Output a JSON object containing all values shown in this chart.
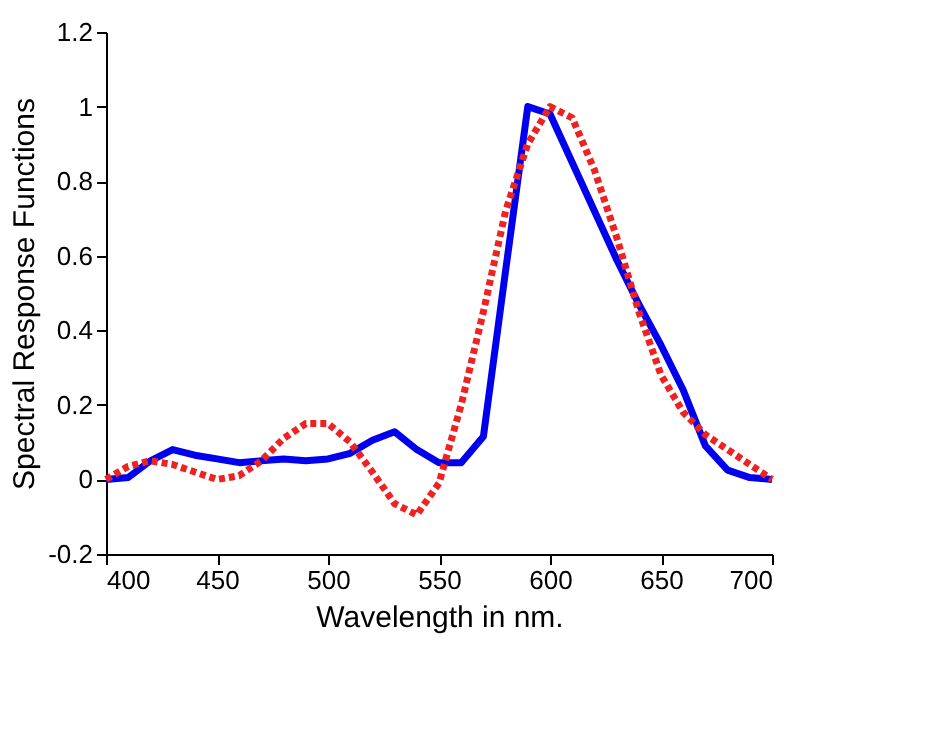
{
  "chart_data": {
    "type": "line",
    "xlabel": "Wavelength in nm.",
    "ylabel": "Spectral Response Functions",
    "x": [
      400,
      410,
      420,
      430,
      440,
      450,
      460,
      470,
      480,
      490,
      500,
      510,
      520,
      530,
      540,
      550,
      560,
      570,
      580,
      590,
      600,
      610,
      620,
      630,
      640,
      650,
      660,
      670,
      680,
      690,
      700
    ],
    "series": [
      {
        "color": "#0000ee",
        "line_style": "solid",
        "values": [
          0,
          0.005,
          0.05,
          0.08,
          0.065,
          0.055,
          0.045,
          0.05,
          0.055,
          0.05,
          0.055,
          0.07,
          0.105,
          0.128,
          0.08,
          0.045,
          0.045,
          0.115,
          0.56,
          1.0,
          0.98,
          0.85,
          0.72,
          0.59,
          0.47,
          0.36,
          0.24,
          0.09,
          0.025,
          0.005,
          0
        ]
      },
      {
        "color": "#ee2222",
        "line_style": "dotted",
        "values": [
          0,
          0.035,
          0.05,
          0.04,
          0.02,
          0.0,
          0.01,
          0.05,
          0.11,
          0.15,
          0.15,
          0.1,
          0.02,
          -0.065,
          -0.095,
          -0.01,
          0.2,
          0.45,
          0.72,
          0.9,
          1.0,
          0.97,
          0.83,
          0.65,
          0.45,
          0.28,
          0.18,
          0.12,
          0.08,
          0.04,
          0
        ]
      }
    ],
    "xlim": [
      400,
      700
    ],
    "xticks": [
      400,
      450,
      500,
      550,
      600,
      650,
      700
    ],
    "ylim": [
      -0.2,
      1.2
    ],
    "yticks": [
      -0.2,
      0,
      0.2,
      0.4,
      0.6,
      0.8,
      1,
      1.2
    ],
    "grid": false,
    "marker": "none"
  }
}
